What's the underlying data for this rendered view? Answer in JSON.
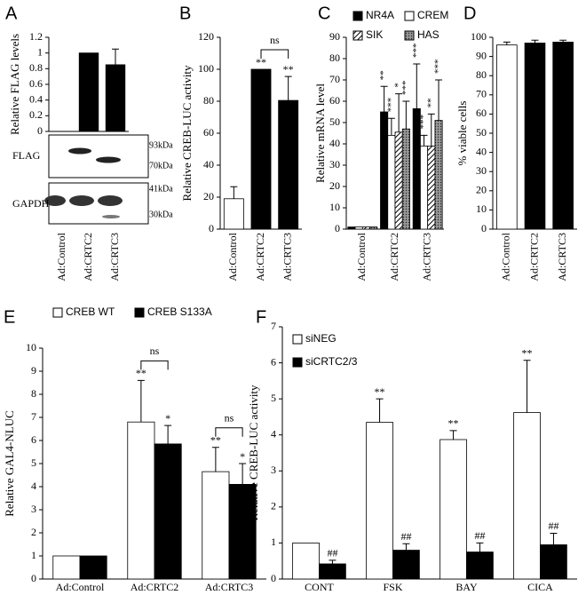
{
  "chart_data": [
    {
      "type": "bar",
      "panel": "A",
      "ylabel": "Relative FLAG levels",
      "categories": [
        "Ad:Control",
        "Ad:CRTC2",
        "Ad:CRTC3"
      ],
      "series": [
        {
          "color": "#000000",
          "values": [
            0,
            1,
            0.85
          ],
          "errors": [
            null,
            null,
            0.2
          ]
        }
      ],
      "ylim": [
        0,
        1.2
      ],
      "yticks": [
        0,
        0.2,
        0.4,
        0.6,
        0.8,
        1,
        1.2
      ],
      "blot_labels": [
        "FLAG",
        "GAPDH"
      ],
      "size_markers": [
        "93kDa",
        "70kDa",
        "41kDa",
        "30kDa"
      ]
    },
    {
      "type": "bar",
      "panel": "B",
      "ylabel": "Relative CREB-LUC activity",
      "categories": [
        "Ad:Control",
        "Ad:CRTC2",
        "Ad:CRTC3"
      ],
      "series": [
        {
          "color": "#ffffff",
          "colors": [
            "#ffffff",
            "#000000",
            "#000000"
          ],
          "values": [
            19,
            100,
            80.5
          ],
          "errors": [
            7.5,
            null,
            15
          ],
          "significance": [
            null,
            "**",
            "**"
          ]
        }
      ],
      "brackets": [
        {
          "label": "ns",
          "from": [
            1,
            0
          ],
          "to": [
            2,
            0
          ]
        }
      ],
      "ylim": [
        0,
        120
      ],
      "yticks": [
        0,
        20,
        40,
        60,
        80,
        100,
        120
      ]
    },
    {
      "type": "bar",
      "panel": "C",
      "ylabel": "Relative mRNA level",
      "categories": [
        "Ad:Control",
        "Ad:CRTC2",
        "Ad:CRTC3"
      ],
      "series": [
        {
          "name": "NR4A",
          "color": "#000000",
          "values": [
            1,
            55,
            56.5
          ],
          "errors": [
            null,
            12,
            21
          ],
          "significance": [
            null,
            "**",
            "***"
          ]
        },
        {
          "name": "CREM",
          "color": "#ffffff",
          "values": [
            1,
            44,
            39
          ],
          "errors": [
            null,
            8,
            5
          ],
          "significance": [
            null,
            "***",
            "***"
          ]
        },
        {
          "name": "SIK",
          "color": "#ffffff",
          "pattern": "hatch",
          "values": [
            1,
            45.5,
            39
          ],
          "errors": [
            null,
            18,
            15
          ],
          "significance": [
            null,
            "*",
            "**"
          ]
        },
        {
          "name": "HAS",
          "color": "#999999",
          "pattern": "dots",
          "values": [
            1,
            47,
            51
          ],
          "errors": [
            null,
            13,
            19
          ],
          "significance": [
            null,
            "***",
            "***"
          ]
        }
      ],
      "ylim": [
        0,
        90
      ],
      "yticks": [
        0,
        10,
        20,
        30,
        40,
        50,
        60,
        70,
        80,
        90
      ]
    },
    {
      "type": "bar",
      "panel": "D",
      "ylabel": "% viable cells",
      "categories": [
        "Ad:Control",
        "Ad:CRTC2",
        "Ad:CRTC3"
      ],
      "series": [
        {
          "color": "#ffffff",
          "colors": [
            "#ffffff",
            "#000000",
            "#000000"
          ],
          "values": [
            96,
            97,
            97.5
          ],
          "errors": [
            1.5,
            1.5,
            1
          ]
        }
      ],
      "ylim": [
        0,
        100
      ],
      "yticks": [
        0,
        10,
        20,
        30,
        40,
        50,
        60,
        70,
        80,
        90,
        100
      ]
    },
    {
      "type": "bar",
      "panel": "E",
      "ylabel": "Relative GAL4-NLUC",
      "categories": [
        "Ad:Control",
        "Ad:CRTC2",
        "Ad:CRTC3"
      ],
      "series": [
        {
          "name": "CREB WT",
          "color": "#ffffff",
          "values": [
            1,
            6.8,
            4.65
          ],
          "errors": [
            null,
            1.8,
            1.05
          ],
          "significance": [
            null,
            "**",
            "**"
          ]
        },
        {
          "name": "CREB S133A",
          "color": "#000000",
          "values": [
            1,
            5.85,
            4.1
          ],
          "errors": [
            null,
            0.8,
            0.9
          ],
          "significance": [
            null,
            "*",
            "*"
          ]
        }
      ],
      "brackets": [
        {
          "label": "ns",
          "from": [
            1,
            0
          ],
          "to": [
            1,
            1
          ]
        },
        {
          "label": "ns",
          "from": [
            2,
            0
          ],
          "to": [
            2,
            1
          ]
        }
      ],
      "ylim": [
        0,
        10
      ],
      "yticks": [
        0,
        1,
        2,
        3,
        4,
        5,
        6,
        7,
        8,
        9,
        10
      ]
    },
    {
      "type": "bar",
      "panel": "F",
      "ylabel": "Relative CREB-LUC activity",
      "categories": [
        "CONT",
        "FSK",
        "BAY",
        "CICA"
      ],
      "series": [
        {
          "name": "siNEG",
          "color": "#ffffff",
          "values": [
            1,
            4.35,
            3.87,
            4.62
          ],
          "errors": [
            null,
            0.65,
            0.25,
            1.45
          ],
          "significance": [
            null,
            "**",
            "**",
            "**"
          ]
        },
        {
          "name": "siCRTC2/3",
          "color": "#000000",
          "values": [
            0.42,
            0.8,
            0.75,
            0.95
          ],
          "errors": [
            0.1,
            0.18,
            0.25,
            0.32
          ],
          "significance": [
            "##",
            "##",
            "##",
            "##"
          ]
        }
      ],
      "ylim": [
        0,
        7
      ],
      "yticks": [
        0,
        1,
        2,
        3,
        4,
        5,
        6,
        7
      ]
    }
  ]
}
